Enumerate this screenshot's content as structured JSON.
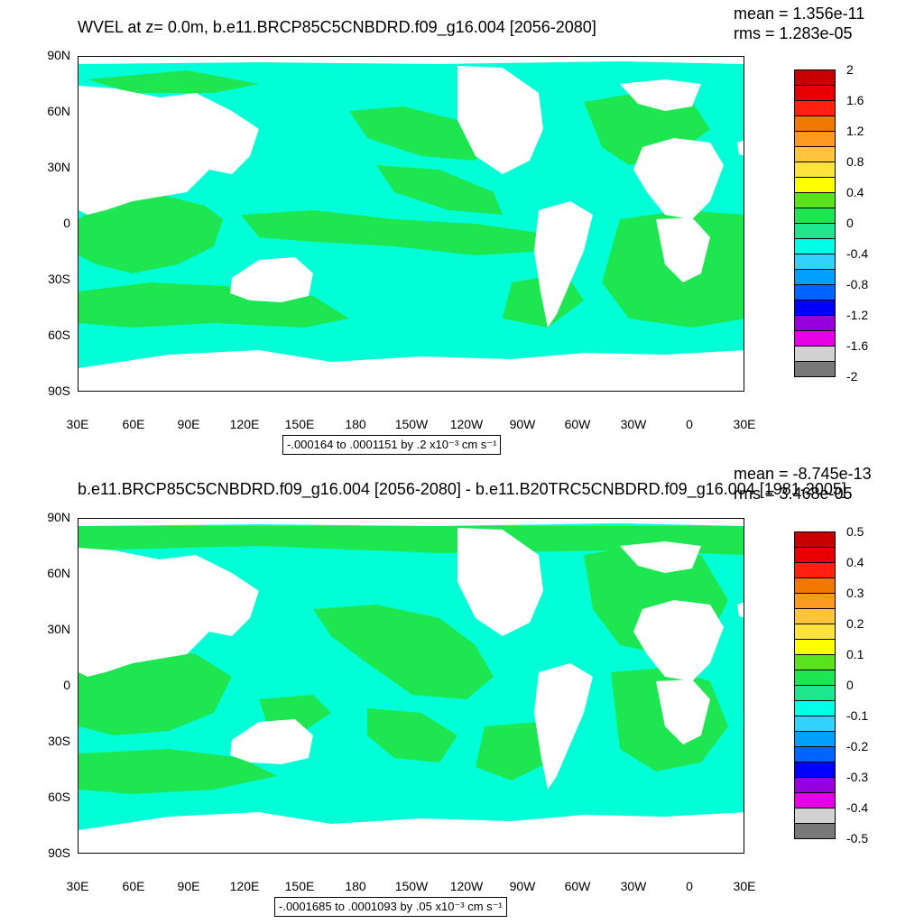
{
  "panels": [
    {
      "title": "WVEL at z=   0.0m, b.e11.BRCP85C5CNBDRD.f09_g16.004 [2056-2080]",
      "mean": "mean = 1.356e-11",
      "rms": "rms = 1.283e-05",
      "range": "-.000164 to .0001151 by .2 x10⁻³ cm s⁻¹",
      "colorbar_labels": [
        "2",
        "1.6",
        "1.2",
        "0.8",
        "0.4",
        "0",
        "-0.4",
        "-0.8",
        "-1.2",
        "-1.6",
        "-2"
      ]
    },
    {
      "title": "b.e11.BRCP85C5CNBDRD.f09_g16.004 [2056-2080] - b.e11.B20TRC5CNBDRD.f09_g16.004 [1981-2005]",
      "mean": "mean = -8.745e-13",
      "rms": "rms = 3.468e-05",
      "range": "-.0001685 to .0001093 by .05 x10⁻³ cm s⁻¹",
      "colorbar_labels": [
        "0.5",
        "0.4",
        "0.3",
        "0.2",
        "0.1",
        "0",
        "-0.1",
        "-0.2",
        "-0.3",
        "-0.4",
        "-0.5"
      ]
    }
  ],
  "lat_labels": [
    "90N",
    "60N",
    "30N",
    "0",
    "30S",
    "60S",
    "90S"
  ],
  "lon_labels": [
    "30E",
    "60E",
    "90E",
    "120E",
    "150E",
    "180",
    "150W",
    "120W",
    "90W",
    "60W",
    "30W",
    "0",
    "30E"
  ],
  "colorbar_colors": [
    "#c80000",
    "#e60000",
    "#ff2010",
    "#f07800",
    "#ff9a20",
    "#ffc43c",
    "#ffe23c",
    "#ffff00",
    "#5ae21e",
    "#1ee650",
    "#1ee68c",
    "#00ffe6",
    "#32d2ff",
    "#00a0ff",
    "#0064ff",
    "#0000ff",
    "#9600dc",
    "#e600e6",
    "#d2d2d2",
    "#787878"
  ],
  "colors": {
    "ocean_cyan": "#00ffd7",
    "ocean_green": "#1ee650",
    "land": "#ffffff"
  }
}
